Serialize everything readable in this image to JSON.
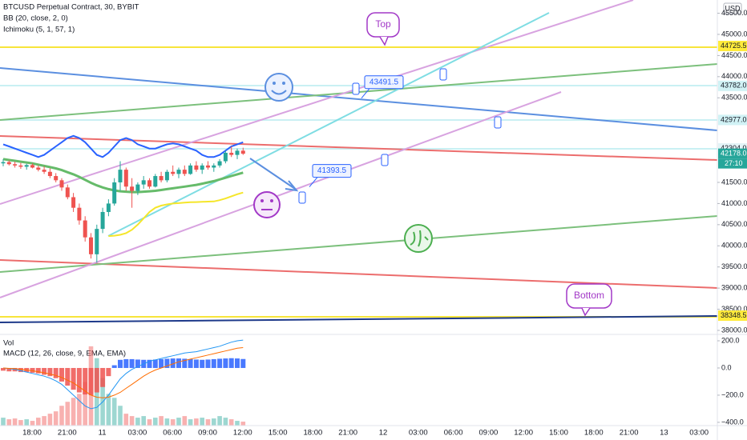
{
  "header": {
    "title": "BTCUSD Perpetual Contract, 30, BYBIT",
    "indicators": [
      "BB (20, close, 2, 0)",
      "Ichimoku (5, 1, 57, 1)"
    ],
    "currency": "USD"
  },
  "chart_data": {
    "type": "candlestick",
    "title": "BTCUSD Perpetual Contract, 30, BYBIT",
    "up_color": "#26a69a",
    "down_color": "#ef5350",
    "ylim": [
      37905,
      45813
    ],
    "yticks": [
      {
        "value": 45500,
        "label": "45500.0"
      },
      {
        "value": 45000,
        "label": "45000.0"
      },
      {
        "value": 44500,
        "label": "44500.0"
      },
      {
        "value": 44000,
        "label": "44000.0"
      },
      {
        "value": 43500,
        "label": "43500.0"
      },
      {
        "value": 41500,
        "label": "41500.0"
      },
      {
        "value": 41000,
        "label": "41000.0"
      },
      {
        "value": 40500,
        "label": "40500.0"
      },
      {
        "value": 40000,
        "label": "40000.0"
      },
      {
        "value": 39500,
        "label": "39500.0"
      },
      {
        "value": 39000,
        "label": "39000.0"
      },
      {
        "value": 38500,
        "label": "38500.0"
      },
      {
        "value": 38000,
        "label": "38000.0"
      }
    ],
    "time_labels": [
      "18:00",
      "21:00",
      "11",
      "03:00",
      "06:00",
      "09:00",
      "12:00",
      "15:00",
      "18:00",
      "21:00",
      "12",
      "03:00",
      "06:00",
      "09:00",
      "12:00",
      "15:00",
      "18:00",
      "21:00",
      "13",
      "03:00"
    ],
    "open": [
      41950,
      41980,
      41930,
      41900,
      41870,
      41910,
      41850,
      41800,
      41750,
      41650,
      41550,
      41380,
      41150,
      40900,
      40600,
      40200,
      39800,
      40400,
      40800,
      41000,
      41500,
      41800,
      41400,
      41300,
      41450,
      41550,
      41400,
      41650,
      41550,
      41750,
      41700,
      41800,
      41700,
      41900,
      41800,
      41900,
      41850,
      41900,
      42000,
      42200,
      42150,
      42250
    ],
    "high": [
      42050,
      42020,
      41990,
      41960,
      41940,
      41950,
      41900,
      41880,
      41830,
      41720,
      41600,
      41450,
      41250,
      41000,
      40700,
      40300,
      40500,
      40900,
      41100,
      41600,
      42000,
      41850,
      41600,
      41500,
      41650,
      41600,
      41700,
      41750,
      41800,
      41900,
      41850,
      41900,
      41950,
      42000,
      41950,
      42000,
      41950,
      42050,
      42250,
      42350,
      42300,
      42320
    ],
    "low": [
      41880,
      41900,
      41850,
      41820,
      41800,
      41830,
      41760,
      41700,
      41600,
      41500,
      41300,
      41100,
      40800,
      40500,
      40100,
      39700,
      39600,
      40300,
      40700,
      40950,
      41300,
      41300,
      40900,
      41200,
      41350,
      41350,
      41380,
      41500,
      41500,
      41650,
      41600,
      41650,
      41680,
      41750,
      41700,
      41800,
      41750,
      41850,
      41950,
      42100,
      42050,
      42150
    ],
    "close": [
      41980,
      41930,
      41900,
      41870,
      41910,
      41850,
      41800,
      41750,
      41650,
      41550,
      41380,
      41150,
      40900,
      40600,
      40200,
      39800,
      40400,
      40800,
      41000,
      41500,
      41800,
      41400,
      41300,
      41450,
      41550,
      41400,
      41650,
      41550,
      41750,
      41700,
      41800,
      41700,
      41900,
      41800,
      41900,
      41850,
      41900,
      42000,
      42200,
      42150,
      42250,
      42178
    ],
    "series": [
      {
        "color": "#2962ff",
        "values": [
          42400,
          42350,
          42300,
          42250,
          42200,
          42150,
          42100,
          42150,
          42250,
          42350,
          42450,
          42550,
          42600,
          42550,
          42450,
          42300,
          42150,
          42100,
          42200,
          42350,
          42500,
          42550,
          42500,
          42400,
          42350,
          42300,
          42300,
          42350,
          42400,
          42420,
          42400,
          42350,
          42300,
          42250,
          42150,
          42100,
          42100,
          42150,
          42250,
          42350,
          42400,
          42450
        ]
      },
      {
        "color": "#66bb6a",
        "values": [
          42050,
          42030,
          42010,
          41990,
          41970,
          41950,
          41920,
          41890,
          41860,
          41830,
          41790,
          41740,
          41690,
          41630,
          41560,
          41490,
          41430,
          41380,
          41340,
          41310,
          41290,
          41280,
          41270,
          41270,
          41280,
          41290,
          41300,
          41320,
          41340,
          41360,
          41380,
          41400,
          41420,
          41440,
          41470,
          41500,
          41530,
          41570,
          41610,
          41650,
          41690,
          41730
        ]
      },
      {
        "color": "#f5e62a",
        "values": [
          null,
          null,
          null,
          null,
          null,
          null,
          null,
          null,
          null,
          null,
          null,
          null,
          null,
          null,
          null,
          null,
          null,
          null,
          40230,
          40240,
          40260,
          40300,
          40380,
          40500,
          40650,
          40800,
          40900,
          40950,
          40980,
          41000,
          41010,
          41020,
          41030,
          41035,
          41040,
          41045,
          41050,
          41080,
          41120,
          41170,
          41220,
          41260
        ]
      }
    ],
    "price_tags": [
      {
        "value": 44725.5,
        "label": "44725.5",
        "color": "#ffeb3b",
        "text_color": "#131722"
      },
      {
        "value": 43782,
        "label": "43782.0",
        "color": "#d1f2f5",
        "text_color": "#131722"
      },
      {
        "value": 42977,
        "label": "42977.0",
        "color": "#d1f2f5",
        "text_color": "#131722"
      },
      {
        "value": 42304,
        "label": "42304.0",
        "color": "#e3f3f6",
        "text_color": "#131722"
      },
      {
        "value": 42178,
        "label": "42178.0",
        "color": "#26a69a",
        "text_color": "#ffffff"
      },
      {
        "value": 38348.5,
        "label": "38348.5",
        "color": "#ffeb3b",
        "text_color": "#131722"
      }
    ],
    "countdown": "27:10",
    "callouts": [
      {
        "value": 43491.5,
        "label": "43491.5"
      },
      {
        "value": 41393.5,
        "label": "41393.5"
      }
    ],
    "notes": [
      "Top",
      "Bottom"
    ],
    "volume": {
      "title": "Vol",
      "ylim": [
        0,
        115
      ],
      "values": [
        10,
        8,
        9,
        7,
        8,
        6,
        10,
        12,
        15,
        18,
        25,
        30,
        35,
        40,
        55,
        100,
        85,
        60,
        40,
        35,
        25,
        15,
        12,
        10,
        12,
        8,
        10,
        12,
        9,
        8,
        10,
        12,
        8,
        9,
        10,
        8,
        9,
        12,
        10,
        8,
        6,
        5
      ]
    },
    "macd": {
      "title": "MACD (12, 26, close, 9, EMA, EMA)",
      "ylim": [
        -424,
        247
      ],
      "yticks": [
        {
          "value": 200,
          "label": "200.0"
        },
        {
          "value": 0,
          "label": "0.0"
        },
        {
          "value": -200,
          "label": "−200.0"
        },
        {
          "value": -400,
          "label": "−400.0"
        }
      ],
      "histogram": [
        -20,
        -25,
        -25,
        -30,
        -30,
        -35,
        -40,
        -50,
        -60,
        -75,
        -100,
        -130,
        -160,
        -180,
        -195,
        -200,
        -180,
        -140,
        -60,
        20,
        60,
        65,
        65,
        62,
        60,
        60,
        62,
        65,
        68,
        70,
        70,
        68,
        65,
        62,
        60,
        62,
        65,
        68,
        70,
        72,
        70,
        66
      ],
      "pos_color": "#2962ff",
      "neg_color": "#ef5350",
      "macd_line": {
        "color": "#2196f3",
        "values": [
          0,
          -5,
          -10,
          -20,
          -30,
          -40,
          -50,
          -60,
          -75,
          -95,
          -120,
          -160,
          -200,
          -240,
          -280,
          -300,
          -290,
          -250,
          -200,
          -140,
          -80,
          -40,
          -10,
          10,
          30,
          50,
          60,
          70,
          80,
          90,
          100,
          110,
          115,
          120,
          130,
          140,
          150,
          160,
          175,
          190,
          200,
          205
        ]
      },
      "signal_line": {
        "color": "#ff6d00",
        "values": [
          0,
          -3,
          -5,
          -10,
          -15,
          -20,
          -28,
          -35,
          -45,
          -55,
          -70,
          -90,
          -110,
          -140,
          -170,
          -200,
          -215,
          -220,
          -215,
          -200,
          -180,
          -150,
          -120,
          -90,
          -60,
          -35,
          -15,
          0,
          15,
          30,
          45,
          55,
          65,
          75,
          85,
          95,
          105,
          115,
          125,
          135,
          145,
          150
        ]
      }
    }
  }
}
